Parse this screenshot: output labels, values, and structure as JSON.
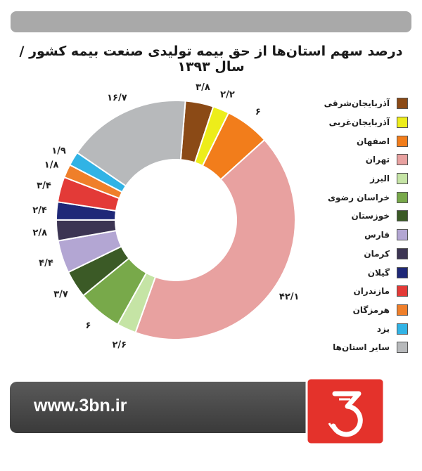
{
  "page": {
    "title": "درصد سهم استان‌ها از حق بیمه تولیدی صنعت بیمه کشور / سال ۱۳۹۳",
    "footer_url": "www.3bn.ir",
    "logo_icon": "3bn-logo-icon"
  },
  "chart_data": {
    "type": "pie",
    "title": "درصد سهم استان‌ها از حق بیمه تولیدی صنعت بیمه کشور / سال ۱۳۹۳",
    "donut": true,
    "legend_position": "right",
    "series": [
      {
        "name": "آذربایجان‌شرقی",
        "value": 3.8,
        "label": "۳/۸",
        "color": "#8b4a16"
      },
      {
        "name": "آذربایجان‌غربی",
        "value": 2.2,
        "label": "۲/۲",
        "color": "#eded1a"
      },
      {
        "name": "اصفهان",
        "value": 6,
        "label": "۶",
        "color": "#f27d1b"
      },
      {
        "name": "تهران",
        "value": 42.1,
        "label": "۴۲/۱",
        "color": "#e8a1a0"
      },
      {
        "name": "البرز",
        "value": 2.6,
        "label": "۲/۶",
        "color": "#c5e4a5"
      },
      {
        "name": "خراسان رضوی",
        "value": 6,
        "label": "۶",
        "color": "#78a94a"
      },
      {
        "name": "خوزستان",
        "value": 3.7,
        "label": "۳/۷",
        "color": "#3b5a26"
      },
      {
        "name": "فارس",
        "value": 4.4,
        "label": "۴/۴",
        "color": "#b3a6d3"
      },
      {
        "name": "کرمان",
        "value": 2.8,
        "label": "۲/۸",
        "color": "#3c3553"
      },
      {
        "name": "گیلان",
        "value": 2.4,
        "label": "۲/۴",
        "color": "#1f2878"
      },
      {
        "name": "مازندران",
        "value": 3.4,
        "label": "۳/۴",
        "color": "#e33a37"
      },
      {
        "name": "هرمزگان",
        "value": 1.8,
        "label": "۱/۸",
        "color": "#ef7f2a"
      },
      {
        "name": "یزد",
        "value": 1.9,
        "label": "۱/۹",
        "color": "#31b3e5"
      },
      {
        "name": "سایر استان‌ها",
        "value": 16.7,
        "label": "۱۶/۷",
        "color": "#b7b9bb"
      }
    ]
  }
}
